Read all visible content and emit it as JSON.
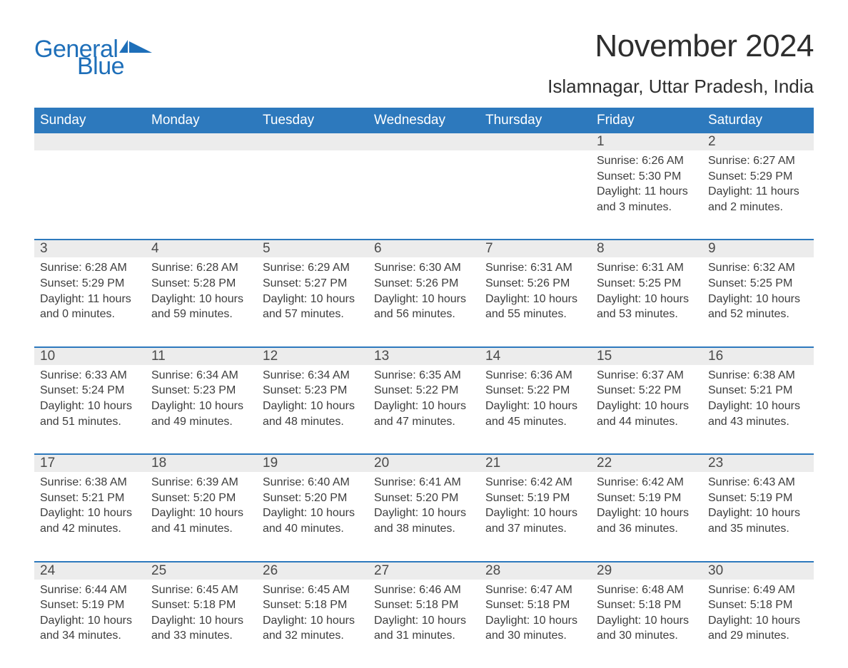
{
  "brand": {
    "word1": "General",
    "word2": "Blue",
    "accent_color": "#1e6fb9"
  },
  "header": {
    "month_title": "November 2024",
    "location": "Islamnagar, Uttar Pradesh, India"
  },
  "colors": {
    "dow_bg": "#2d79bd",
    "dow_text": "#ffffff",
    "daynum_bg": "#ececec",
    "week_border": "#2d79bd",
    "body_text": "#3d3d3d",
    "page_bg": "#ffffff"
  },
  "days_of_week": [
    "Sunday",
    "Monday",
    "Tuesday",
    "Wednesday",
    "Thursday",
    "Friday",
    "Saturday"
  ],
  "weeks": [
    [
      {
        "n": "",
        "sr": "",
        "ss": "",
        "dl": ""
      },
      {
        "n": "",
        "sr": "",
        "ss": "",
        "dl": ""
      },
      {
        "n": "",
        "sr": "",
        "ss": "",
        "dl": ""
      },
      {
        "n": "",
        "sr": "",
        "ss": "",
        "dl": ""
      },
      {
        "n": "",
        "sr": "",
        "ss": "",
        "dl": ""
      },
      {
        "n": "1",
        "sr": "Sunrise: 6:26 AM",
        "ss": "Sunset: 5:30 PM",
        "dl": "Daylight: 11 hours and 3 minutes."
      },
      {
        "n": "2",
        "sr": "Sunrise: 6:27 AM",
        "ss": "Sunset: 5:29 PM",
        "dl": "Daylight: 11 hours and 2 minutes."
      }
    ],
    [
      {
        "n": "3",
        "sr": "Sunrise: 6:28 AM",
        "ss": "Sunset: 5:29 PM",
        "dl": "Daylight: 11 hours and 0 minutes."
      },
      {
        "n": "4",
        "sr": "Sunrise: 6:28 AM",
        "ss": "Sunset: 5:28 PM",
        "dl": "Daylight: 10 hours and 59 minutes."
      },
      {
        "n": "5",
        "sr": "Sunrise: 6:29 AM",
        "ss": "Sunset: 5:27 PM",
        "dl": "Daylight: 10 hours and 57 minutes."
      },
      {
        "n": "6",
        "sr": "Sunrise: 6:30 AM",
        "ss": "Sunset: 5:26 PM",
        "dl": "Daylight: 10 hours and 56 minutes."
      },
      {
        "n": "7",
        "sr": "Sunrise: 6:31 AM",
        "ss": "Sunset: 5:26 PM",
        "dl": "Daylight: 10 hours and 55 minutes."
      },
      {
        "n": "8",
        "sr": "Sunrise: 6:31 AM",
        "ss": "Sunset: 5:25 PM",
        "dl": "Daylight: 10 hours and 53 minutes."
      },
      {
        "n": "9",
        "sr": "Sunrise: 6:32 AM",
        "ss": "Sunset: 5:25 PM",
        "dl": "Daylight: 10 hours and 52 minutes."
      }
    ],
    [
      {
        "n": "10",
        "sr": "Sunrise: 6:33 AM",
        "ss": "Sunset: 5:24 PM",
        "dl": "Daylight: 10 hours and 51 minutes."
      },
      {
        "n": "11",
        "sr": "Sunrise: 6:34 AM",
        "ss": "Sunset: 5:23 PM",
        "dl": "Daylight: 10 hours and 49 minutes."
      },
      {
        "n": "12",
        "sr": "Sunrise: 6:34 AM",
        "ss": "Sunset: 5:23 PM",
        "dl": "Daylight: 10 hours and 48 minutes."
      },
      {
        "n": "13",
        "sr": "Sunrise: 6:35 AM",
        "ss": "Sunset: 5:22 PM",
        "dl": "Daylight: 10 hours and 47 minutes."
      },
      {
        "n": "14",
        "sr": "Sunrise: 6:36 AM",
        "ss": "Sunset: 5:22 PM",
        "dl": "Daylight: 10 hours and 45 minutes."
      },
      {
        "n": "15",
        "sr": "Sunrise: 6:37 AM",
        "ss": "Sunset: 5:22 PM",
        "dl": "Daylight: 10 hours and 44 minutes."
      },
      {
        "n": "16",
        "sr": "Sunrise: 6:38 AM",
        "ss": "Sunset: 5:21 PM",
        "dl": "Daylight: 10 hours and 43 minutes."
      }
    ],
    [
      {
        "n": "17",
        "sr": "Sunrise: 6:38 AM",
        "ss": "Sunset: 5:21 PM",
        "dl": "Daylight: 10 hours and 42 minutes."
      },
      {
        "n": "18",
        "sr": "Sunrise: 6:39 AM",
        "ss": "Sunset: 5:20 PM",
        "dl": "Daylight: 10 hours and 41 minutes."
      },
      {
        "n": "19",
        "sr": "Sunrise: 6:40 AM",
        "ss": "Sunset: 5:20 PM",
        "dl": "Daylight: 10 hours and 40 minutes."
      },
      {
        "n": "20",
        "sr": "Sunrise: 6:41 AM",
        "ss": "Sunset: 5:20 PM",
        "dl": "Daylight: 10 hours and 38 minutes."
      },
      {
        "n": "21",
        "sr": "Sunrise: 6:42 AM",
        "ss": "Sunset: 5:19 PM",
        "dl": "Daylight: 10 hours and 37 minutes."
      },
      {
        "n": "22",
        "sr": "Sunrise: 6:42 AM",
        "ss": "Sunset: 5:19 PM",
        "dl": "Daylight: 10 hours and 36 minutes."
      },
      {
        "n": "23",
        "sr": "Sunrise: 6:43 AM",
        "ss": "Sunset: 5:19 PM",
        "dl": "Daylight: 10 hours and 35 minutes."
      }
    ],
    [
      {
        "n": "24",
        "sr": "Sunrise: 6:44 AM",
        "ss": "Sunset: 5:19 PM",
        "dl": "Daylight: 10 hours and 34 minutes."
      },
      {
        "n": "25",
        "sr": "Sunrise: 6:45 AM",
        "ss": "Sunset: 5:18 PM",
        "dl": "Daylight: 10 hours and 33 minutes."
      },
      {
        "n": "26",
        "sr": "Sunrise: 6:45 AM",
        "ss": "Sunset: 5:18 PM",
        "dl": "Daylight: 10 hours and 32 minutes."
      },
      {
        "n": "27",
        "sr": "Sunrise: 6:46 AM",
        "ss": "Sunset: 5:18 PM",
        "dl": "Daylight: 10 hours and 31 minutes."
      },
      {
        "n": "28",
        "sr": "Sunrise: 6:47 AM",
        "ss": "Sunset: 5:18 PM",
        "dl": "Daylight: 10 hours and 30 minutes."
      },
      {
        "n": "29",
        "sr": "Sunrise: 6:48 AM",
        "ss": "Sunset: 5:18 PM",
        "dl": "Daylight: 10 hours and 30 minutes."
      },
      {
        "n": "30",
        "sr": "Sunrise: 6:49 AM",
        "ss": "Sunset: 5:18 PM",
        "dl": "Daylight: 10 hours and 29 minutes."
      }
    ]
  ]
}
